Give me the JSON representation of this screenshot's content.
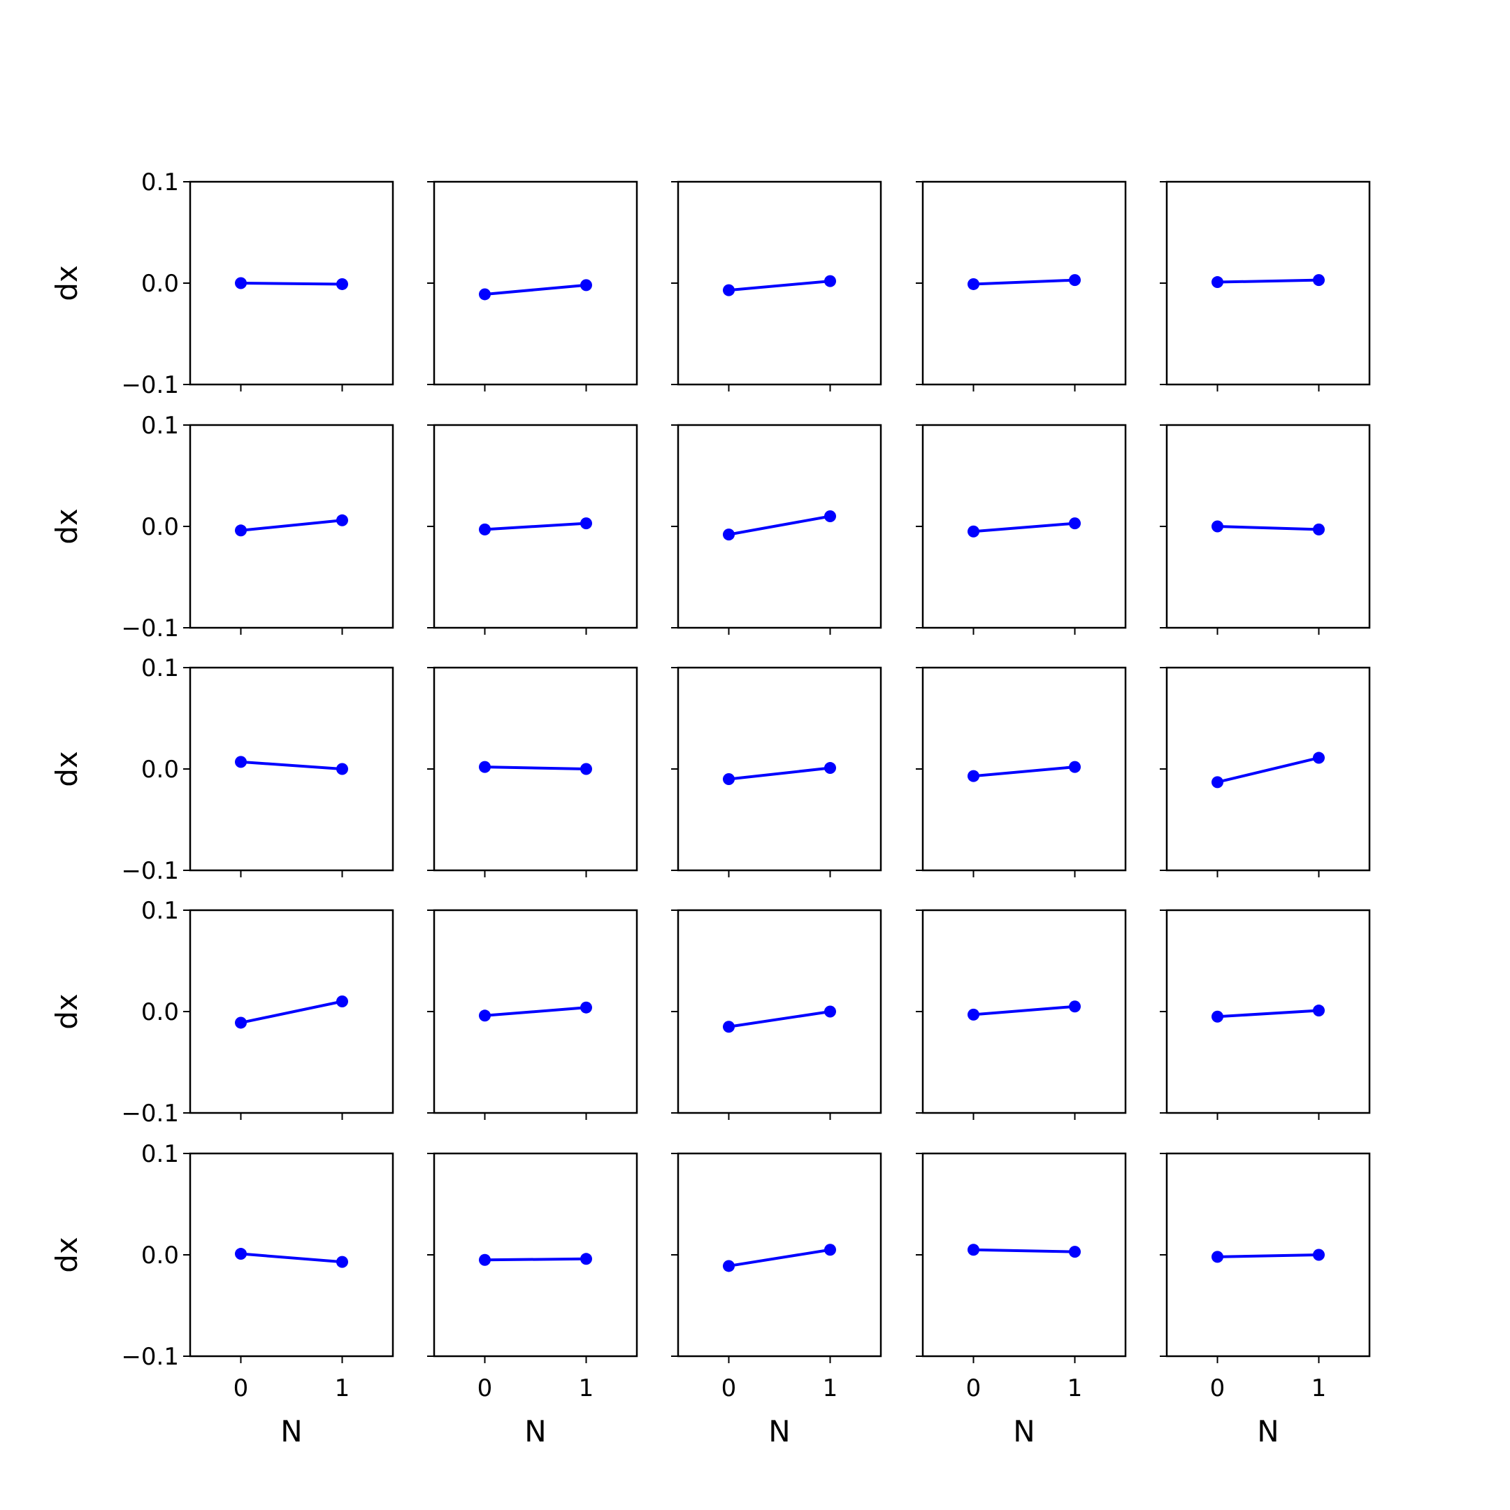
{
  "chart_data": {
    "type": "line",
    "layout": "grid",
    "rows": 5,
    "cols": 5,
    "sharex": true,
    "sharey": true,
    "xlabel": "N",
    "ylabel": "dx",
    "xlim": [
      -0.5,
      1.5
    ],
    "ylim": [
      -0.1,
      0.1
    ],
    "xticks": [
      0,
      1
    ],
    "xtick_labels": [
      "0",
      "1"
    ],
    "yticks": [
      0.1,
      0.0,
      -0.1
    ],
    "ytick_labels": [
      "0.1",
      "0.0",
      "−0.1"
    ],
    "grid": false,
    "line_color": "#0000ff",
    "marker": "circle",
    "x": [
      0,
      1
    ],
    "panels": [
      [
        [
          0.0,
          -0.001
        ],
        [
          -0.011,
          -0.002
        ],
        [
          -0.007,
          0.002
        ],
        [
          -0.001,
          0.003
        ],
        [
          0.001,
          0.003
        ]
      ],
      [
        [
          -0.004,
          0.006
        ],
        [
          -0.003,
          0.003
        ],
        [
          -0.008,
          0.01
        ],
        [
          -0.005,
          0.003
        ],
        [
          0.0,
          -0.003
        ]
      ],
      [
        [
          0.007,
          0.0
        ],
        [
          0.002,
          0.0
        ],
        [
          -0.01,
          0.001
        ],
        [
          -0.007,
          0.002
        ],
        [
          -0.013,
          0.011
        ]
      ],
      [
        [
          -0.011,
          0.01
        ],
        [
          -0.004,
          0.004
        ],
        [
          -0.015,
          0.0
        ],
        [
          -0.003,
          0.005
        ],
        [
          -0.005,
          0.001
        ]
      ],
      [
        [
          0.001,
          -0.007
        ],
        [
          -0.005,
          -0.004
        ],
        [
          -0.011,
          0.005
        ],
        [
          0.005,
          0.003
        ],
        [
          -0.002,
          0.0
        ]
      ]
    ]
  }
}
